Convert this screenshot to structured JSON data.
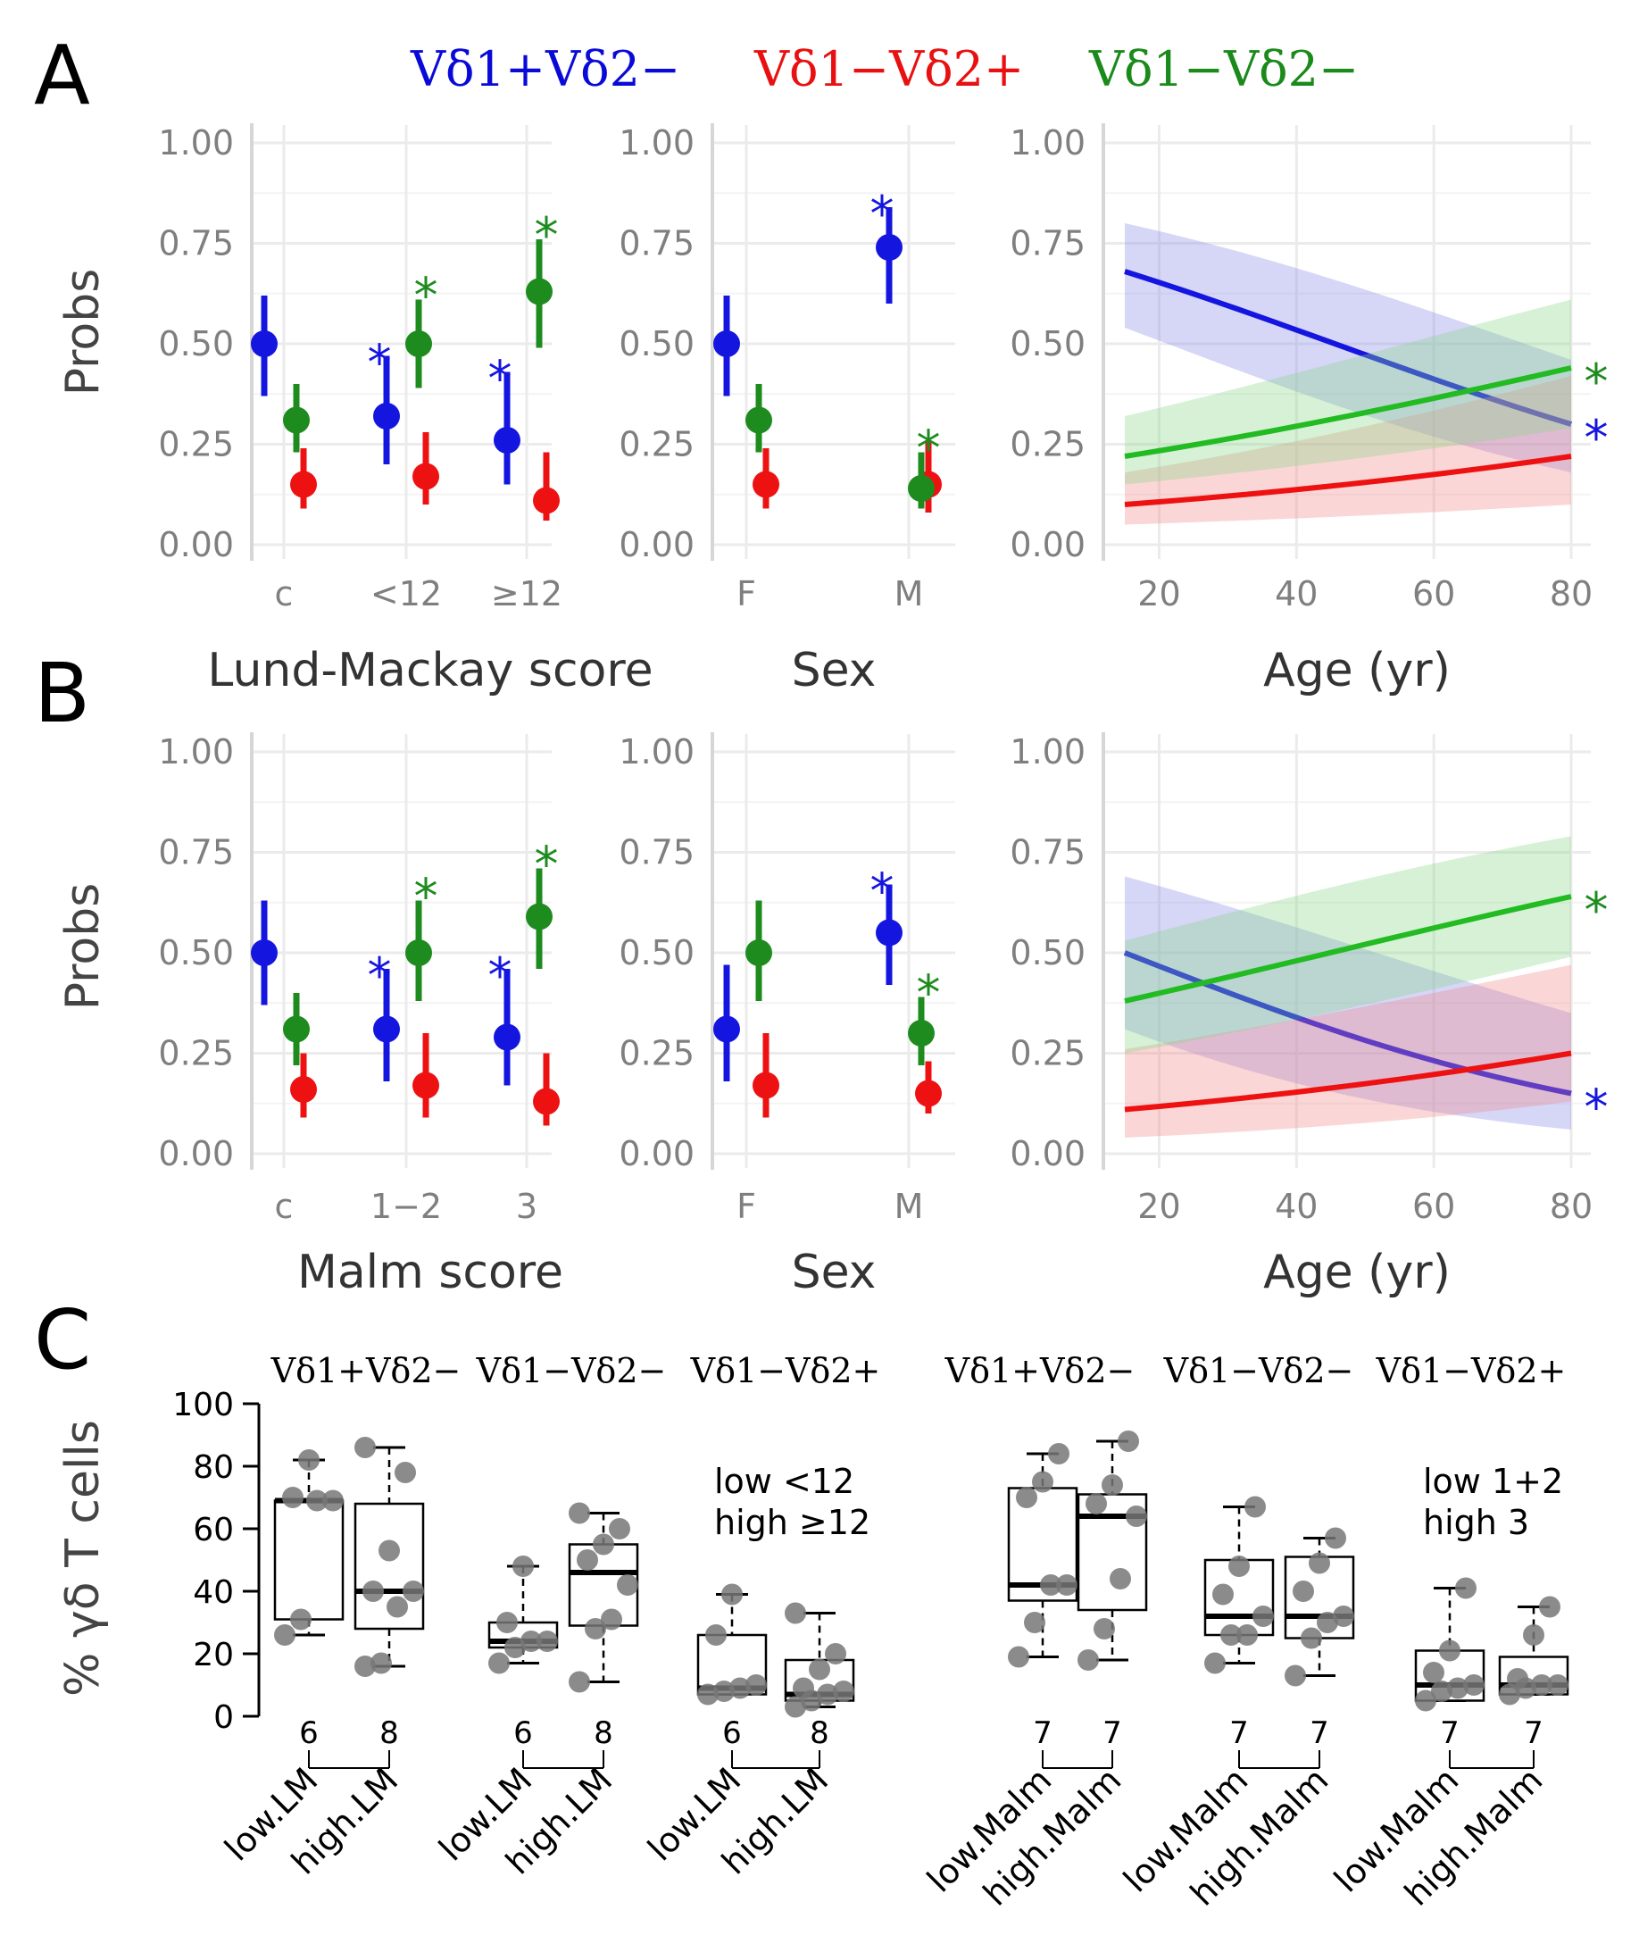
{
  "panel_letters": {
    "a": "A",
    "b": "B",
    "c": "C"
  },
  "legend": [
    {
      "label": "Vδ1+Vδ2−",
      "color": "#0a0ad8"
    },
    {
      "label": "Vδ1−Vδ2+",
      "color": "#e81010"
    },
    {
      "label": "Vδ1−Vδ2−",
      "color": "#1a8a1a"
    }
  ],
  "colors": {
    "blue": "#1515e0",
    "red": "#ee1111",
    "green": "#1e8b1e",
    "line_green": "#22bb22",
    "grid": "#ebebeb",
    "text_gray": "#7f7f7f"
  },
  "ylabel_probs": "Probs",
  "y_ticks": [
    "0.00",
    "0.25",
    "0.50",
    "0.75",
    "1.00"
  ],
  "star": "*",
  "chart_data": [
    {
      "id": "A1",
      "type": "scatter",
      "xlabel": "Lund-Mackay score",
      "ylabel": "Probs",
      "ylim": [
        0,
        1
      ],
      "categories": [
        "c",
        "<12",
        "≥12"
      ],
      "series": [
        {
          "name": "Vδ1+Vδ2−",
          "values": [
            0.5,
            0.32,
            0.26
          ],
          "lower": [
            0.37,
            0.2,
            0.15
          ],
          "upper": [
            0.62,
            0.47,
            0.43
          ]
        },
        {
          "name": "Vδ1−Vδ2+",
          "values": [
            0.15,
            0.17,
            0.11
          ],
          "lower": [
            0.09,
            0.1,
            0.06
          ],
          "upper": [
            0.24,
            0.28,
            0.23
          ]
        },
        {
          "name": "Vδ1−Vδ2−",
          "values": [
            0.31,
            0.5,
            0.63
          ],
          "lower": [
            0.23,
            0.39,
            0.49
          ],
          "upper": [
            0.4,
            0.61,
            0.76
          ]
        }
      ],
      "significance": [
        {
          "series": "Vδ1+Vδ2−",
          "category": "<12"
        },
        {
          "series": "Vδ1−Vδ2−",
          "category": "<12"
        },
        {
          "series": "Vδ1+Vδ2−",
          "category": "≥12"
        },
        {
          "series": "Vδ1−Vδ2−",
          "category": "≥12"
        }
      ]
    },
    {
      "id": "A2",
      "type": "scatter",
      "xlabel": "Sex",
      "ylabel": "Probs",
      "ylim": [
        0,
        1
      ],
      "categories": [
        "F",
        "M"
      ],
      "series": [
        {
          "name": "Vδ1+Vδ2−",
          "values": [
            0.5,
            0.74
          ],
          "lower": [
            0.37,
            0.6
          ],
          "upper": [
            0.62,
            0.84
          ]
        },
        {
          "name": "Vδ1−Vδ2+",
          "values": [
            0.15,
            0.15
          ],
          "lower": [
            0.09,
            0.08
          ],
          "upper": [
            0.24,
            0.26
          ]
        },
        {
          "name": "Vδ1−Vδ2−",
          "values": [
            0.31,
            0.14
          ],
          "lower": [
            0.23,
            0.09
          ],
          "upper": [
            0.4,
            0.23
          ]
        }
      ],
      "significance": [
        {
          "series": "Vδ1+Vδ2−",
          "category": "M"
        },
        {
          "series": "Vδ1−Vδ2−",
          "category": "M"
        }
      ]
    },
    {
      "id": "A3",
      "type": "line",
      "xlabel": "Age (yr)",
      "ylabel": "Probs",
      "ylim": [
        0,
        1
      ],
      "xlim": [
        15,
        80
      ],
      "x_ticks": [
        20,
        40,
        60,
        80
      ],
      "series": [
        {
          "name": "Vδ1+Vδ2−",
          "x": [
            15,
            80
          ],
          "y": [
            0.68,
            0.3
          ],
          "lower": [
            0.54,
            0.18
          ],
          "upper": [
            0.8,
            0.46
          ]
        },
        {
          "name": "Vδ1−Vδ2+",
          "x": [
            15,
            80
          ],
          "y": [
            0.1,
            0.22
          ],
          "lower": [
            0.05,
            0.1
          ],
          "upper": [
            0.18,
            0.42
          ]
        },
        {
          "name": "Vδ1−Vδ2−",
          "x": [
            15,
            80
          ],
          "y": [
            0.22,
            0.44
          ],
          "lower": [
            0.15,
            0.29
          ],
          "upper": [
            0.32,
            0.61
          ]
        }
      ],
      "significance": [
        {
          "series": "Vδ1−Vδ2−",
          "x": 80
        },
        {
          "series": "Vδ1+Vδ2−",
          "x": 80
        }
      ]
    },
    {
      "id": "B1",
      "type": "scatter",
      "xlabel": "Malm score",
      "ylabel": "Probs",
      "ylim": [
        0,
        1
      ],
      "categories": [
        "c",
        "1−2",
        "3"
      ],
      "series": [
        {
          "name": "Vδ1+Vδ2−",
          "values": [
            0.5,
            0.31,
            0.29
          ],
          "lower": [
            0.37,
            0.18,
            0.17
          ],
          "upper": [
            0.63,
            0.46,
            0.46
          ]
        },
        {
          "name": "Vδ1−Vδ2+",
          "values": [
            0.16,
            0.17,
            0.13
          ],
          "lower": [
            0.09,
            0.09,
            0.07
          ],
          "upper": [
            0.25,
            0.3,
            0.25
          ]
        },
        {
          "name": "Vδ1−Vδ2−",
          "values": [
            0.31,
            0.5,
            0.59
          ],
          "lower": [
            0.22,
            0.38,
            0.46
          ],
          "upper": [
            0.4,
            0.63,
            0.71
          ]
        }
      ],
      "significance": [
        {
          "series": "Vδ1+Vδ2−",
          "category": "1−2"
        },
        {
          "series": "Vδ1−Vδ2−",
          "category": "1−2"
        },
        {
          "series": "Vδ1+Vδ2−",
          "category": "3"
        },
        {
          "series": "Vδ1−Vδ2−",
          "category": "3"
        }
      ]
    },
    {
      "id": "B2",
      "type": "scatter",
      "xlabel": "Sex",
      "ylabel": "Probs",
      "ylim": [
        0,
        1
      ],
      "categories": [
        "F",
        "M"
      ],
      "series": [
        {
          "name": "Vδ1+Vδ2−",
          "values": [
            0.31,
            0.55
          ],
          "lower": [
            0.18,
            0.42
          ],
          "upper": [
            0.47,
            0.67
          ]
        },
        {
          "name": "Vδ1−Vδ2+",
          "values": [
            0.17,
            0.15
          ],
          "lower": [
            0.09,
            0.1
          ],
          "upper": [
            0.3,
            0.23
          ]
        },
        {
          "name": "Vδ1−Vδ2−",
          "values": [
            0.5,
            0.3
          ],
          "lower": [
            0.38,
            0.22
          ],
          "upper": [
            0.63,
            0.39
          ]
        }
      ],
      "significance": [
        {
          "series": "Vδ1+Vδ2−",
          "category": "M"
        },
        {
          "series": "Vδ1−Vδ2−",
          "category": "M"
        }
      ]
    },
    {
      "id": "B3",
      "type": "line",
      "xlabel": "Age (yr)",
      "ylabel": "Probs",
      "ylim": [
        0,
        1
      ],
      "xlim": [
        15,
        80
      ],
      "x_ticks": [
        20,
        40,
        60,
        80
      ],
      "series": [
        {
          "name": "Vδ1+Vδ2−",
          "x": [
            15,
            80
          ],
          "y": [
            0.5,
            0.15
          ],
          "lower": [
            0.31,
            0.06
          ],
          "upper": [
            0.69,
            0.35
          ]
        },
        {
          "name": "Vδ1−Vδ2+",
          "x": [
            15,
            80
          ],
          "y": [
            0.11,
            0.25
          ],
          "lower": [
            0.04,
            0.13
          ],
          "upper": [
            0.26,
            0.47
          ]
        },
        {
          "name": "Vδ1−Vδ2−",
          "x": [
            15,
            80
          ],
          "y": [
            0.38,
            0.64
          ],
          "lower": [
            0.25,
            0.49
          ],
          "upper": [
            0.53,
            0.79
          ]
        }
      ],
      "significance": [
        {
          "series": "Vδ1−Vδ2−",
          "x": 80
        },
        {
          "series": "Vδ1+Vδ2−",
          "x": 80
        }
      ]
    },
    {
      "id": "C",
      "type": "box",
      "ylabel": "% γδ T cells",
      "ylim": [
        0,
        100
      ],
      "y_ticks": [
        0,
        20,
        40,
        60,
        80,
        100
      ],
      "notes": {
        "left": [
          "low <12",
          "high ≥12"
        ],
        "right": [
          "low 1+2",
          "high 3"
        ]
      },
      "groups": [
        {
          "header": "Vδ1+Vδ2−",
          "boxes": [
            {
              "label": "low.LM",
              "n": "6",
              "whisker_low": 26,
              "q1": 31,
              "median": 69,
              "q3": 69,
              "whisker_high": 82,
              "points": [
                26,
                31,
                69,
                69,
                70,
                82
              ]
            },
            {
              "label": "high.LM",
              "n": "8",
              "whisker_low": 16,
              "q1": 28,
              "median": 40,
              "q3": 68,
              "whisker_high": 86,
              "points": [
                16,
                17,
                35,
                40,
                40,
                53,
                78,
                86
              ]
            }
          ]
        },
        {
          "header": "Vδ1−Vδ2−",
          "boxes": [
            {
              "label": "low.LM",
              "n": "6",
              "whisker_low": 17,
              "q1": 22,
              "median": 24,
              "q3": 30,
              "whisker_high": 48,
              "points": [
                17,
                22,
                24,
                24,
                30,
                48
              ]
            },
            {
              "label": "high.LM",
              "n": "8",
              "whisker_low": 11,
              "q1": 29,
              "median": 46,
              "q3": 55,
              "whisker_high": 65,
              "points": [
                11,
                28,
                31,
                42,
                50,
                55,
                60,
                65
              ]
            }
          ]
        },
        {
          "header": "Vδ1−Vδ2+",
          "boxes": [
            {
              "label": "low.LM",
              "n": "6",
              "whisker_low": 7,
              "q1": 7,
              "median": 9,
              "q3": 26,
              "whisker_high": 39,
              "points": [
                7,
                8,
                9,
                10,
                26,
                39
              ]
            },
            {
              "label": "high.LM",
              "n": "8",
              "whisker_low": 3,
              "q1": 5,
              "median": 7,
              "q3": 18,
              "whisker_high": 33,
              "points": [
                3,
                5,
                7,
                8,
                9,
                15,
                20,
                33
              ]
            }
          ]
        },
        {
          "header": "Vδ1+Vδ2−",
          "boxes": [
            {
              "label": "low.Malm",
              "n": "7",
              "whisker_low": 19,
              "q1": 37,
              "median": 42,
              "q3": 73,
              "whisker_high": 84,
              "points": [
                19,
                30,
                42,
                42,
                70,
                75,
                84
              ]
            },
            {
              "label": "high.Malm",
              "n": "7",
              "whisker_low": 18,
              "q1": 34,
              "median": 64,
              "q3": 71,
              "whisker_high": 88,
              "points": [
                18,
                28,
                44,
                64,
                68,
                74,
                88
              ]
            }
          ]
        },
        {
          "header": "Vδ1−Vδ2−",
          "boxes": [
            {
              "label": "low.Malm",
              "n": "7",
              "whisker_low": 17,
              "q1": 26,
              "median": 32,
              "q3": 50,
              "whisker_high": 67,
              "points": [
                17,
                26,
                26,
                32,
                39,
                48,
                67
              ]
            },
            {
              "label": "high.Malm",
              "n": "7",
              "whisker_low": 13,
              "q1": 25,
              "median": 32,
              "q3": 51,
              "whisker_high": 57,
              "points": [
                13,
                25,
                30,
                32,
                40,
                49,
                57
              ]
            }
          ]
        },
        {
          "header": "Vδ1−Vδ2+",
          "boxes": [
            {
              "label": "low.Malm",
              "n": "7",
              "whisker_low": 5,
              "q1": 5,
              "median": 10,
              "q3": 21,
              "whisker_high": 41,
              "points": [
                5,
                8,
                9,
                10,
                14,
                21,
                41
              ]
            },
            {
              "label": "high.Malm",
              "n": "7",
              "whisker_low": 7,
              "q1": 7,
              "median": 10,
              "q3": 19,
              "whisker_high": 35,
              "points": [
                7,
                9,
                10,
                10,
                12,
                26,
                35
              ]
            }
          ]
        }
      ]
    }
  ]
}
